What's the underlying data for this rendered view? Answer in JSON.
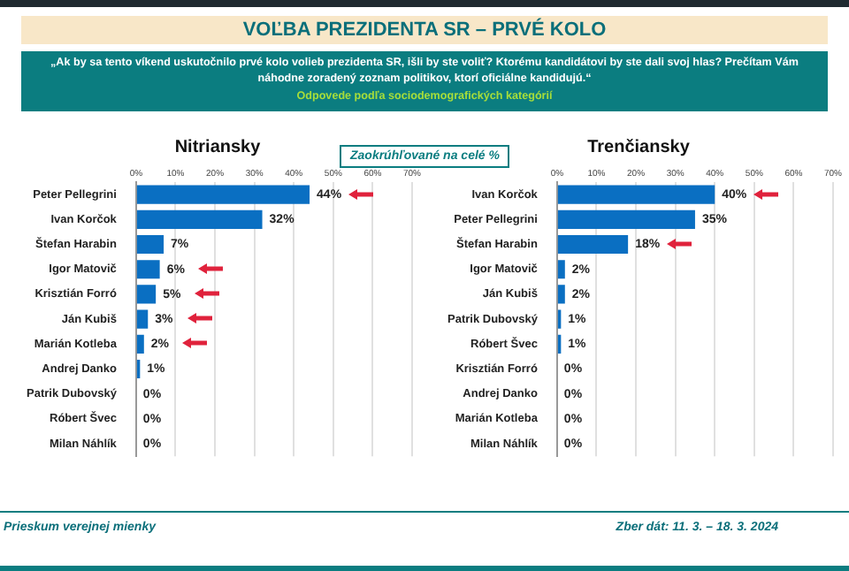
{
  "chart_data": [
    {
      "type": "bar",
      "orientation": "horizontal",
      "title": "Nitriansky",
      "annotations": [
        "VOĽBA PREZIDENTA SR – PRVÉ KOLO",
        "„Ak by sa tento víkend uskutočnilo prvé kolo volieb prezidenta SR, išli by ste voliť? Ktorému kandidátovi by ste dali svoj hlas? Prečítam Vám náhodne zoradený zoznam politikov, ktorí oficiálne kandidujú.“",
        "Odpovede podľa sociodemografických kategórií",
        "Zaokrúhľované na celé %",
        "Prieskum verejnej mienky",
        "Zber dát: 11. 3. – 18. 3. 2024"
      ],
      "categories": [
        "Peter Pellegrini",
        "Ivan Korčok",
        "Štefan Harabin",
        "Igor Matovič",
        "Krisztián Forró",
        "Ján Kubiš",
        "Marián Kotleba",
        "Andrej Danko",
        "Patrik Dubovský",
        "Róbert Švec",
        "Milan Náhlík"
      ],
      "values": [
        44,
        32,
        7,
        6,
        5,
        3,
        2,
        1,
        0,
        0,
        0
      ],
      "value_labels": [
        "44%",
        "32%",
        "7%",
        "6%",
        "5%",
        "3%",
        "2%",
        "1%",
        "0%",
        "0%",
        "0%"
      ],
      "color": "#0a6fc2",
      "xlim": [
        0,
        70
      ],
      "xticks": [
        {
          "value": 0,
          "label": "0%"
        },
        {
          "value": 10,
          "label": "10%"
        },
        {
          "value": 20,
          "label": "20%"
        },
        {
          "value": 30,
          "label": "30%"
        },
        {
          "value": 40,
          "label": "40%"
        },
        {
          "value": 50,
          "label": "50%"
        },
        {
          "value": 60,
          "label": "60%"
        },
        {
          "value": 70,
          "label": "70%"
        }
      ],
      "grid": "x"
    },
    {
      "type": "bar",
      "orientation": "horizontal",
      "title": "Trenčiansky",
      "categories": [
        "Ivan Korčok",
        "Peter Pellegrini",
        "Štefan Harabin",
        "Igor Matovič",
        "Ján Kubiš",
        "Patrik Dubovský",
        "Róbert Švec",
        "Krisztián Forró",
        "Andrej Danko",
        "Marián Kotleba",
        "Milan Náhlík"
      ],
      "values": [
        40,
        35,
        18,
        2,
        2,
        1,
        1,
        0,
        0,
        0,
        0
      ],
      "value_labels": [
        "40%",
        "35%",
        "18%",
        "2%",
        "2%",
        "1%",
        "1%",
        "0%",
        "0%",
        "0%",
        "0%"
      ],
      "color": "#0a6fc2",
      "xlim": [
        0,
        70
      ],
      "xticks": [
        {
          "value": 0,
          "label": "0%"
        },
        {
          "value": 10,
          "label": "10%"
        },
        {
          "value": 20,
          "label": "20%"
        },
        {
          "value": 30,
          "label": "30%"
        },
        {
          "value": 40,
          "label": "40%"
        },
        {
          "value": 50,
          "label": "50%"
        },
        {
          "value": 60,
          "label": "60%"
        },
        {
          "value": 70,
          "label": "70%"
        }
      ],
      "grid": "x"
    }
  ]
}
